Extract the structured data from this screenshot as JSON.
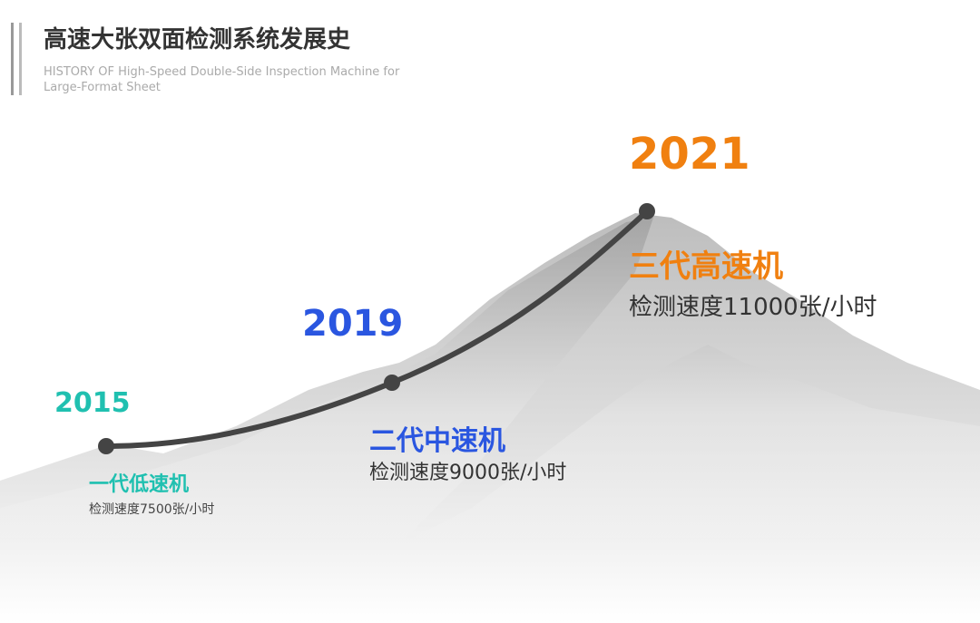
{
  "header": {
    "title": "高速大张双面检测系统发展史",
    "subtitle": "HISTORY OF High-Speed Double-Side Inspection Machine for Large-Format Sheet"
  },
  "milestones": [
    {
      "year": "2015",
      "name": "一代低速机",
      "speed": "检测速度7500张/小时"
    },
    {
      "year": "2019",
      "name": "二代中速机",
      "speed": "检测速度9000张/小时"
    },
    {
      "year": "2021",
      "name": "三代高速机",
      "speed": "检测速度11000张/小时"
    }
  ]
}
